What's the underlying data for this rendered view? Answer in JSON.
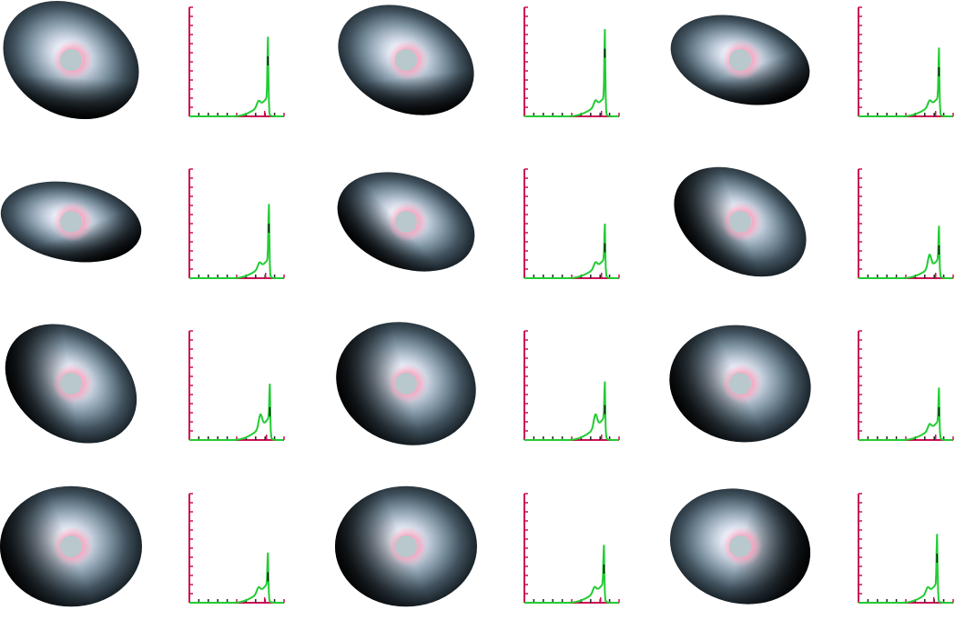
{
  "figure": {
    "background": "#ffffff"
  },
  "colors": {
    "axis": "#cc1155",
    "ticks_dark": "#222222",
    "line": "#22cc33",
    "line_dark": "#111111",
    "disk_inner": "#b8c8cc",
    "ring": "#f2a6bf"
  },
  "chart_data": [
    {
      "type": "line",
      "panel": 1,
      "disk": {
        "tilt_deg": 28,
        "flatness": 0.78,
        "shadow_deg": 300,
        "shadow": 0.35
      },
      "x": [
        0,
        1,
        2,
        3,
        4,
        5,
        6,
        7,
        8,
        9,
        10
      ],
      "y": [
        0,
        0,
        0,
        0,
        0,
        0.02,
        0.04,
        0.1,
        0.2,
        0.55,
        0
      ],
      "peak": {
        "x": 8.3,
        "y": 0.55
      }
    },
    {
      "type": "line",
      "panel": 2,
      "disk": {
        "tilt_deg": 25,
        "flatness": 0.72,
        "shadow_deg": 310,
        "shadow": 0.35
      },
      "x": [
        0,
        1,
        2,
        3,
        4,
        5,
        6,
        7,
        8,
        9,
        10
      ],
      "y": [
        0,
        0,
        0,
        0,
        0,
        0.01,
        0.03,
        0.08,
        0.18,
        0.62,
        0
      ],
      "peak": {
        "x": 8.5,
        "y": 0.62
      }
    },
    {
      "type": "line",
      "panel": 3,
      "disk": {
        "tilt_deg": 15,
        "flatness": 0.6,
        "shadow_deg": 320,
        "shadow": 0.4
      },
      "x": [
        0,
        1,
        2,
        3,
        4,
        5,
        6,
        7,
        8,
        9,
        10
      ],
      "y": [
        0,
        0,
        0,
        0,
        0,
        0.01,
        0.03,
        0.07,
        0.15,
        0.45,
        0
      ],
      "peak": {
        "x": 8.5,
        "y": 0.45
      }
    },
    {
      "type": "line",
      "panel": 4,
      "disk": {
        "tilt_deg": 10,
        "flatness": 0.55,
        "shadow_deg": 320,
        "shadow": 0.4
      },
      "x": [
        0,
        1,
        2,
        3,
        4,
        5,
        6,
        7,
        8,
        9,
        10
      ],
      "y": [
        0,
        0,
        0,
        0,
        0,
        0.02,
        0.04,
        0.1,
        0.2,
        0.5,
        0
      ],
      "peak": {
        "x": 8.4,
        "y": 0.5
      }
    },
    {
      "type": "line",
      "panel": 5,
      "disk": {
        "tilt_deg": 20,
        "flatness": 0.65,
        "shadow_deg": 230,
        "shadow": 0.45
      },
      "x": [
        0,
        1,
        2,
        3,
        4,
        5,
        6,
        7,
        8,
        9,
        10
      ],
      "y": [
        0,
        0,
        0,
        0,
        0,
        0.02,
        0.05,
        0.12,
        0.14,
        0.32,
        0
      ],
      "peak": {
        "x": 8.5,
        "y": 0.32
      }
    },
    {
      "type": "line",
      "panel": 6,
      "disk": {
        "tilt_deg": 30,
        "flatness": 0.68,
        "shadow_deg": 220,
        "shadow": 0.5
      },
      "x": [
        0,
        1,
        2,
        3,
        4,
        5,
        6,
        7,
        8,
        9,
        10
      ],
      "y": [
        0,
        0,
        0,
        0,
        0,
        0.03,
        0.06,
        0.13,
        0.14,
        0.3,
        0
      ],
      "peak": {
        "x": 8.5,
        "y": 0.3
      }
    },
    {
      "type": "line",
      "panel": 7,
      "disk": {
        "tilt_deg": 35,
        "flatness": 0.75,
        "shadow_deg": 215,
        "shadow": 0.5
      },
      "x": [
        0,
        1,
        2,
        3,
        4,
        5,
        6,
        7,
        8,
        9,
        10
      ],
      "y": [
        0,
        0,
        0,
        0,
        0,
        0.03,
        0.07,
        0.16,
        0.14,
        0.3,
        0
      ],
      "peak": {
        "x": 8.5,
        "y": 0.3
      }
    },
    {
      "type": "line",
      "panel": 8,
      "disk": {
        "tilt_deg": 20,
        "flatness": 0.85,
        "shadow_deg": 210,
        "shadow": 0.5
      },
      "x": [
        0,
        1,
        2,
        3,
        4,
        5,
        6,
        7,
        8,
        9,
        10
      ],
      "y": [
        0,
        0,
        0,
        0,
        0,
        0.03,
        0.06,
        0.15,
        0.15,
        0.32,
        0
      ],
      "peak": {
        "x": 8.5,
        "y": 0.32
      }
    },
    {
      "type": "line",
      "panel": 9,
      "disk": {
        "tilt_deg": 10,
        "flatness": 0.82,
        "shadow_deg": 210,
        "shadow": 0.5
      },
      "x": [
        0,
        1,
        2,
        3,
        4,
        5,
        6,
        7,
        8,
        9,
        10
      ],
      "y": [
        0,
        0,
        0,
        0,
        0,
        0.02,
        0.05,
        0.12,
        0.14,
        0.3,
        0
      ],
      "peak": {
        "x": 8.5,
        "y": 0.3
      }
    },
    {
      "type": "line",
      "panel": 10,
      "disk": {
        "tilt_deg": 0,
        "flatness": 0.85,
        "shadow_deg": 200,
        "shadow": 0.5
      },
      "x": [
        0,
        1,
        2,
        3,
        4,
        5,
        6,
        7,
        8,
        9,
        10
      ],
      "y": [
        0,
        0,
        0,
        0,
        0,
        0.02,
        0.05,
        0.12,
        0.2,
        0.28,
        0
      ],
      "peak": {
        "x": 8.3,
        "y": 0.28
      }
    },
    {
      "type": "line",
      "panel": 11,
      "disk": {
        "tilt_deg": 0,
        "flatness": 0.85,
        "shadow_deg": 200,
        "shadow": 0.5
      },
      "x": [
        0,
        1,
        2,
        3,
        4,
        5,
        6,
        7,
        8,
        9,
        10
      ],
      "y": [
        0,
        0,
        0,
        0,
        0,
        0.02,
        0.05,
        0.12,
        0.2,
        0.35,
        0
      ],
      "peak": {
        "x": 8.4,
        "y": 0.35
      }
    },
    {
      "type": "line",
      "panel": 12,
      "disk": {
        "tilt_deg": 15,
        "flatness": 0.8,
        "shadow_deg": 0,
        "shadow": 0.5
      },
      "x": [
        0,
        1,
        2,
        3,
        4,
        5,
        6,
        7,
        8,
        9,
        10
      ],
      "y": [
        0,
        0,
        0,
        0,
        0,
        0.02,
        0.05,
        0.12,
        0.2,
        0.45,
        0
      ],
      "peak": {
        "x": 8.3,
        "y": 0.45
      }
    }
  ]
}
